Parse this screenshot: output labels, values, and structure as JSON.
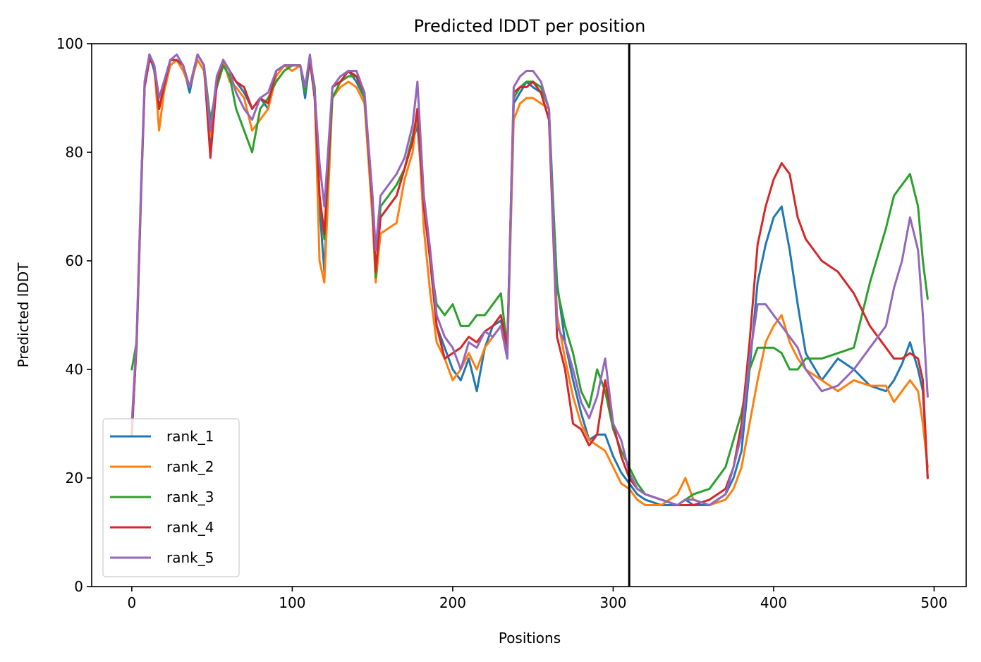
{
  "chart_data": {
    "type": "line",
    "title": "Predicted lDDT per position",
    "xlabel": "Positions",
    "ylabel": "Predicted lDDT",
    "xlim": [
      -25,
      520
    ],
    "ylim": [
      0,
      100
    ],
    "x_ticks": [
      0,
      100,
      200,
      300,
      400,
      500
    ],
    "y_ticks": [
      0,
      20,
      40,
      60,
      80,
      100
    ],
    "grid": false,
    "legend_position": "lower-left",
    "vertical_line_x": 310,
    "vertical_line_color": "#000000",
    "x_knots": [
      0,
      3,
      6,
      8,
      11,
      14,
      17,
      20,
      24,
      28,
      32,
      36,
      41,
      45,
      49,
      53,
      57,
      61,
      65,
      70,
      75,
      80,
      85,
      90,
      95,
      100,
      105,
      108,
      111,
      114,
      117,
      120,
      125,
      130,
      135,
      140,
      145,
      150,
      152,
      155,
      160,
      165,
      170,
      175,
      178,
      182,
      186,
      190,
      195,
      200,
      205,
      210,
      215,
      220,
      225,
      230,
      234,
      238,
      242,
      246,
      250,
      255,
      260,
      265,
      270,
      275,
      280,
      285,
      290,
      295,
      300,
      305,
      310,
      315,
      320,
      330,
      340,
      345,
      350,
      360,
      370,
      375,
      380,
      385,
      390,
      395,
      400,
      405,
      410,
      415,
      420,
      430,
      440,
      450,
      460,
      470,
      475,
      480,
      485,
      490,
      493,
      496
    ],
    "series": [
      {
        "name": "rank_1",
        "color": "#1f77b4",
        "values": [
          28,
          45,
          75,
          92,
          98,
          95,
          88,
          92,
          97,
          97,
          96,
          91,
          98,
          96,
          80,
          94,
          97,
          95,
          93,
          91,
          88,
          90,
          88,
          95,
          96,
          96,
          96,
          90,
          97,
          90,
          70,
          58,
          92,
          93,
          95,
          93,
          90,
          70,
          58,
          68,
          70,
          72,
          77,
          82,
          85,
          70,
          60,
          48,
          44,
          40,
          38,
          42,
          36,
          44,
          48,
          49,
          44,
          89,
          91,
          93,
          92,
          91,
          86,
          56,
          45,
          38,
          32,
          27,
          28,
          28,
          24,
          21,
          19,
          17,
          16,
          15,
          15,
          16,
          15,
          15,
          17,
          20,
          25,
          40,
          56,
          63,
          68,
          70,
          62,
          52,
          43,
          38,
          42,
          40,
          37,
          36,
          38,
          41,
          45,
          40,
          36,
          20
        ]
      },
      {
        "name": "rank_2",
        "color": "#ff7f0e",
        "values": [
          30,
          44,
          74,
          92,
          98,
          96,
          84,
          91,
          96,
          97,
          95,
          92,
          97,
          95,
          83,
          93,
          97,
          93,
          92,
          90,
          84,
          86,
          88,
          94,
          96,
          95,
          96,
          92,
          97,
          91,
          60,
          56,
          90,
          92,
          93,
          92,
          89,
          68,
          56,
          65,
          66,
          67,
          75,
          80,
          88,
          66,
          54,
          45,
          42,
          38,
          40,
          43,
          40,
          44,
          46,
          48,
          42,
          86,
          89,
          90,
          90,
          89,
          88,
          50,
          42,
          35,
          30,
          27,
          26,
          25,
          22,
          19,
          18,
          16,
          15,
          15,
          17,
          20,
          16,
          15,
          16,
          18,
          22,
          30,
          38,
          45,
          48,
          50,
          45,
          42,
          40,
          38,
          36,
          38,
          37,
          37,
          34,
          36,
          38,
          36,
          30,
          22
        ]
      },
      {
        "name": "rank_3",
        "color": "#2ca02c",
        "values": [
          40,
          45,
          75,
          93,
          98,
          96,
          88,
          92,
          97,
          97,
          96,
          92,
          98,
          96,
          86,
          92,
          96,
          94,
          88,
          84,
          80,
          88,
          90,
          93,
          95,
          96,
          96,
          91,
          97,
          92,
          72,
          64,
          90,
          93,
          94,
          94,
          90,
          72,
          57,
          70,
          72,
          74,
          77,
          83,
          87,
          72,
          60,
          52,
          50,
          52,
          48,
          48,
          50,
          50,
          52,
          54,
          44,
          90,
          92,
          93,
          93,
          92,
          88,
          55,
          48,
          43,
          36,
          33,
          40,
          36,
          29,
          25,
          22,
          19,
          17,
          16,
          15,
          16,
          17,
          18,
          22,
          27,
          32,
          40,
          44,
          44,
          44,
          43,
          40,
          40,
          42,
          42,
          43,
          44,
          56,
          66,
          72,
          74,
          76,
          70,
          60,
          53
        ]
      },
      {
        "name": "rank_4",
        "color": "#d62728",
        "values": [
          28,
          45,
          75,
          92,
          97,
          96,
          88,
          92,
          97,
          97,
          96,
          92,
          98,
          96,
          79,
          93,
          97,
          95,
          93,
          92,
          88,
          90,
          89,
          95,
          96,
          96,
          96,
          92,
          97,
          90,
          72,
          65,
          92,
          93,
          95,
          94,
          91,
          70,
          58,
          68,
          70,
          72,
          77,
          82,
          88,
          70,
          60,
          48,
          42,
          43,
          44,
          46,
          45,
          47,
          48,
          50,
          44,
          91,
          92,
          92,
          93,
          91,
          86,
          46,
          40,
          30,
          29,
          26,
          28,
          38,
          30,
          24,
          20,
          18,
          17,
          16,
          15,
          15,
          15,
          16,
          18,
          22,
          30,
          45,
          63,
          70,
          75,
          78,
          76,
          68,
          64,
          60,
          58,
          54,
          48,
          44,
          42,
          42,
          43,
          42,
          38,
          20
        ]
      },
      {
        "name": "rank_5",
        "color": "#9467bd",
        "values": [
          30,
          46,
          76,
          93,
          98,
          96,
          90,
          93,
          97,
          98,
          96,
          92,
          98,
          96,
          84,
          94,
          97,
          95,
          91,
          88,
          86,
          90,
          91,
          95,
          96,
          96,
          96,
          92,
          98,
          91,
          78,
          70,
          92,
          94,
          95,
          95,
          91,
          72,
          62,
          72,
          74,
          76,
          79,
          85,
          93,
          72,
          62,
          50,
          46,
          44,
          40,
          45,
          44,
          47,
          46,
          48,
          42,
          92,
          94,
          95,
          95,
          93,
          88,
          48,
          45,
          40,
          34,
          31,
          35,
          42,
          30,
          27,
          21,
          18,
          17,
          16,
          15,
          16,
          16,
          15,
          17,
          22,
          28,
          42,
          52,
          52,
          50,
          48,
          46,
          44,
          40,
          36,
          37,
          40,
          44,
          48,
          55,
          60,
          68,
          62,
          50,
          35
        ]
      }
    ]
  }
}
